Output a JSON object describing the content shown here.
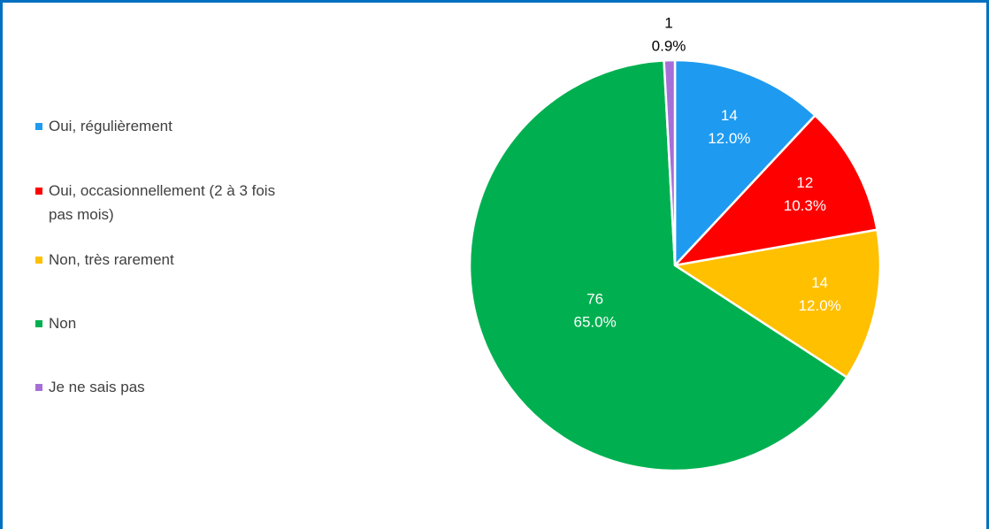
{
  "chart_data": {
    "type": "pie",
    "categories": [
      "Oui, régulièrement",
      "Oui, occasionnellement (2 à 3 fois pas mois)",
      "Non, très rarement",
      "Non",
      "Je ne sais pas"
    ],
    "values": [
      14,
      12,
      14,
      76,
      1
    ],
    "percent_labels": [
      "12.0%",
      "10.3%",
      "12.0%",
      "65.0%",
      "0.9%"
    ],
    "colors": [
      "#1e9bf0",
      "#ff0000",
      "#ffc000",
      "#00b050",
      "#a66fd8"
    ],
    "legend": "left"
  }
}
